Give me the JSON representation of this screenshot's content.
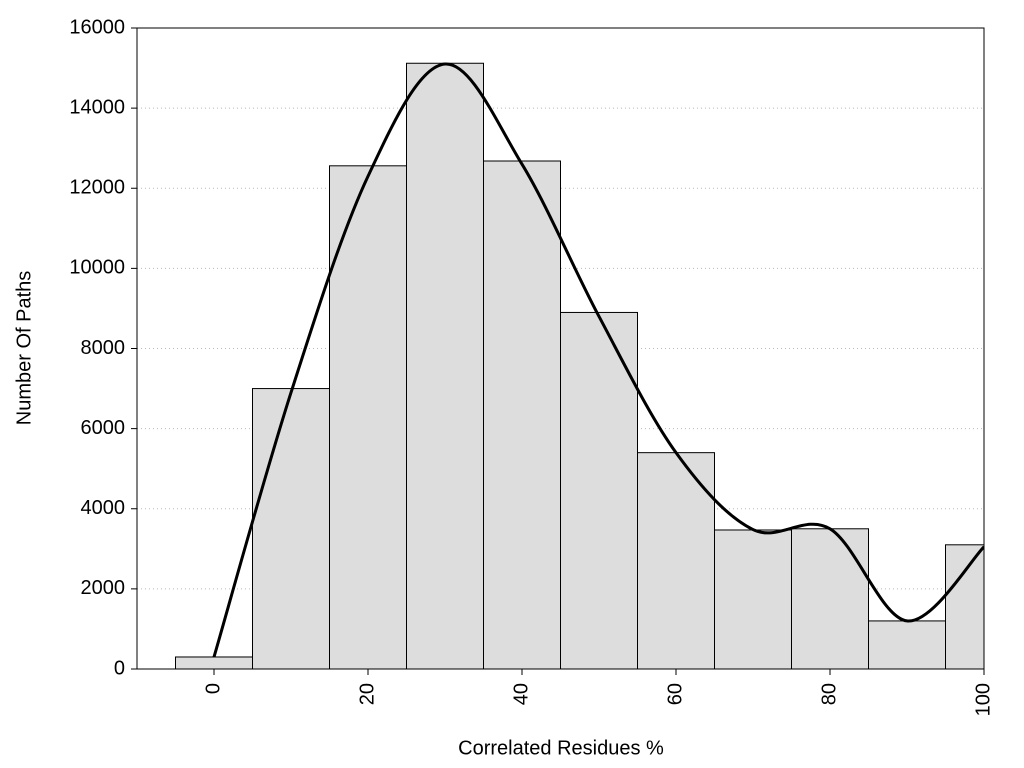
{
  "chart_data": {
    "type": "histogram",
    "xlabel": "Correlated Residues %",
    "ylabel": "Number Of Paths",
    "bins": [
      -5,
      5,
      15,
      25,
      35,
      45,
      55,
      65,
      75,
      85,
      95,
      105
    ],
    "counts": [
      300,
      7000,
      12560,
      15120,
      12680,
      8900,
      5400,
      3470,
      3500,
      1200,
      3100
    ],
    "color": "#dddddd",
    "curve": {
      "x": [
        0,
        10,
        20,
        30,
        40,
        50,
        60,
        70,
        80,
        90,
        100
      ],
      "values": [
        300,
        6900,
        12300,
        15100,
        12600,
        8800,
        5400,
        3480,
        3500,
        1200,
        3050
      ],
      "color": "#000000"
    },
    "xlim": [
      -10,
      100
    ],
    "xticks": [
      0,
      20,
      40,
      60,
      80,
      100
    ],
    "ylim": [
      0,
      16000
    ],
    "yticks": [
      0,
      2000,
      4000,
      6000,
      8000,
      10000,
      12000,
      14000,
      16000
    ],
    "grid": true
  }
}
